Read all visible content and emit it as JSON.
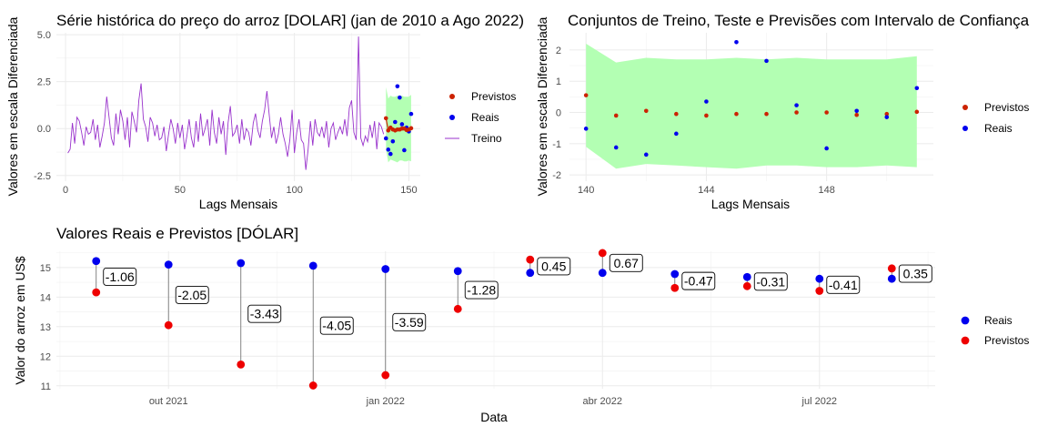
{
  "chart_data": [
    {
      "id": "p1",
      "type": "line",
      "title": "Série histórica do preço do arroz [DOLAR] (jan de 2010 a Ago 2022)",
      "xlabel": "Lags Mensais",
      "ylabel": "Valores em escala Diferenciada",
      "xlim": [
        -4,
        155
      ],
      "ylim": [
        -2.8,
        5.1
      ],
      "xticks": [
        0,
        50,
        100,
        150
      ],
      "yticks": [
        -2.5,
        0.0,
        2.5,
        5.0
      ],
      "ytick_labels": [
        "-2.5",
        "0.0",
        "2.5",
        "5.0"
      ],
      "legend_position": "right",
      "colors": {
        "Previstos": "#cc2200",
        "Reais": "#0000ee",
        "Treino": "#9933cc",
        "band": "#b3ffb3"
      },
      "series": [
        {
          "name": "Treino",
          "type": "line",
          "x": [
            1,
            2,
            3,
            4,
            5,
            6,
            7,
            8,
            9,
            10,
            11,
            12,
            13,
            14,
            15,
            16,
            17,
            18,
            19,
            20,
            21,
            22,
            23,
            24,
            25,
            26,
            27,
            28,
            29,
            30,
            31,
            32,
            33,
            34,
            35,
            36,
            37,
            38,
            39,
            40,
            41,
            42,
            43,
            44,
            45,
            46,
            47,
            48,
            49,
            50,
            51,
            52,
            53,
            54,
            55,
            56,
            57,
            58,
            59,
            60,
            61,
            62,
            63,
            64,
            65,
            66,
            67,
            68,
            69,
            70,
            71,
            72,
            73,
            74,
            75,
            76,
            77,
            78,
            79,
            80,
            81,
            82,
            83,
            84,
            85,
            86,
            87,
            88,
            89,
            90,
            91,
            92,
            93,
            94,
            95,
            96,
            97,
            98,
            99,
            100,
            101,
            102,
            103,
            104,
            105,
            106,
            107,
            108,
            109,
            110,
            111,
            112,
            113,
            114,
            115,
            116,
            117,
            118,
            119,
            120,
            121,
            122,
            123,
            124,
            125,
            126,
            127,
            128,
            129,
            130,
            131,
            132,
            133,
            134,
            135,
            136,
            137,
            138,
            139
          ],
          "y": [
            -1.3,
            -1.1,
            0.3,
            -0.8,
            0.6,
            0.4,
            -0.2,
            -0.9,
            0.1,
            -0.3,
            -0.2,
            0.5,
            -0.6,
            0.2,
            -1.0,
            -0.4,
            0.3,
            1.7,
            0.6,
            -0.5,
            -0.9,
            0.8,
            -0.3,
            1.0,
            0.4,
            -0.6,
            0.6,
            -1.0,
            0.9,
            0.4,
            -0.2,
            1.5,
            2.4,
            0.5,
            0.1,
            -0.7,
            0.6,
            0.3,
            -0.4,
            0.2,
            -0.6,
            -0.5,
            0.1,
            -1.2,
            -0.3,
            0.5,
            0.0,
            -0.8,
            0.3,
            -0.5,
            0.2,
            -1.1,
            -0.4,
            0.5,
            -0.5,
            -1.0,
            0.4,
            -0.7,
            0.8,
            -0.4,
            0.0,
            0.5,
            -0.9,
            1.0,
            -0.2,
            -0.8,
            0.6,
            -0.3,
            0.4,
            -1.4,
            0.3,
            1.2,
            -0.4,
            -0.2,
            0.2,
            -0.8,
            0.5,
            -0.6,
            0.0,
            -0.2,
            -0.9,
            0.3,
            0.8,
            -0.1,
            -0.5,
            0.4,
            1.0,
            2.0,
            0.7,
            -0.5,
            0.1,
            -0.8,
            -0.3,
            0.6,
            -0.3,
            -0.8,
            -1.5,
            -0.6,
            1.0,
            -1.3,
            -0.2,
            0.5,
            -0.6,
            -0.8,
            -2.2,
            -1.1,
            0.4,
            -0.9,
            0.5,
            -0.2,
            -0.4,
            0.1,
            -0.5,
            0.4,
            -1.0,
            0.0,
            0.3,
            -0.6,
            -0.2,
            0.1,
            -0.3,
            0.5,
            -0.4,
            1.1,
            1.5,
            -0.2,
            -0.6,
            4.9,
            -0.5,
            -0.9,
            -0.4,
            -0.7,
            0.2,
            -0.5,
            0.4,
            -1.1,
            0.3,
            0.1,
            -0.3
          ]
        },
        {
          "name": "Previstos",
          "type": "points",
          "x": [
            140,
            141,
            142,
            143,
            144,
            145,
            146,
            147,
            148,
            149,
            150,
            151
          ],
          "y": [
            0.55,
            -0.1,
            0.05,
            -0.05,
            -0.1,
            -0.05,
            -0.05,
            0.0,
            0.0,
            -0.08,
            -0.05,
            0.02
          ]
        },
        {
          "name": "Reais",
          "type": "points",
          "x": [
            140,
            141,
            142,
            143,
            144,
            145,
            146,
            147,
            148,
            149,
            150,
            151
          ],
          "y": [
            -0.52,
            -1.12,
            -1.35,
            -0.68,
            0.35,
            2.25,
            1.65,
            0.23,
            -1.15,
            0.05,
            -0.15,
            0.78
          ]
        },
        {
          "name": "band",
          "type": "area",
          "x": [
            140,
            141,
            142,
            143,
            144,
            145,
            146,
            147,
            148,
            149,
            150,
            151
          ],
          "upper": [
            2.2,
            1.6,
            1.75,
            1.7,
            1.7,
            1.75,
            1.7,
            1.75,
            1.7,
            1.7,
            1.7,
            1.8
          ],
          "lower": [
            -1.1,
            -1.8,
            -1.65,
            -1.7,
            -1.75,
            -1.8,
            -1.7,
            -1.7,
            -1.75,
            -1.75,
            -1.7,
            -1.75
          ]
        }
      ],
      "legend": [
        {
          "label": "Previstos",
          "kind": "point",
          "color": "#cc2200"
        },
        {
          "label": "Reais",
          "kind": "point",
          "color": "#0000ee"
        },
        {
          "label": "Treino",
          "kind": "line",
          "color": "#9933cc"
        }
      ]
    },
    {
      "id": "p2",
      "type": "scatter",
      "title": "Conjuntos de Treino, Teste e Previsões com Intervalo de Confiança",
      "xlabel": "Lags Mensais",
      "ylabel": "Valores em escala Diferenciada",
      "xlim": [
        139.45,
        151.55
      ],
      "ylim": [
        -2.2,
        2.55
      ],
      "xticks": [
        140,
        144,
        148
      ],
      "yticks": [
        -2,
        -1,
        0,
        1,
        2
      ],
      "ytick_labels": [
        "-2",
        "-1",
        "0",
        "1",
        "2"
      ],
      "legend_position": "right",
      "colors": {
        "Previstos": "#cc2200",
        "Reais": "#0000ee",
        "band": "#b3ffb3"
      },
      "series": [
        {
          "name": "band",
          "type": "area",
          "x": [
            140,
            141,
            142,
            143,
            144,
            145,
            146,
            147,
            148,
            149,
            150,
            151
          ],
          "upper": [
            2.2,
            1.6,
            1.75,
            1.7,
            1.7,
            1.75,
            1.7,
            1.75,
            1.7,
            1.7,
            1.7,
            1.8
          ],
          "lower": [
            -1.1,
            -1.8,
            -1.65,
            -1.7,
            -1.75,
            -1.8,
            -1.7,
            -1.7,
            -1.75,
            -1.75,
            -1.7,
            -1.75
          ]
        },
        {
          "name": "Previstos",
          "type": "points",
          "x": [
            140,
            141,
            142,
            143,
            144,
            145,
            146,
            147,
            148,
            149,
            150,
            151
          ],
          "y": [
            0.55,
            -0.1,
            0.05,
            -0.05,
            -0.1,
            -0.05,
            -0.05,
            0.0,
            0.0,
            -0.08,
            -0.05,
            0.02
          ]
        },
        {
          "name": "Reais",
          "type": "points",
          "x": [
            140,
            141,
            142,
            143,
            144,
            145,
            146,
            147,
            148,
            149,
            150,
            151
          ],
          "y": [
            -0.52,
            -1.12,
            -1.35,
            -0.68,
            0.35,
            2.25,
            1.65,
            0.23,
            -1.15,
            0.05,
            -0.15,
            0.78
          ]
        }
      ],
      "legend": [
        {
          "label": "Previstos",
          "kind": "point",
          "color": "#cc2200"
        },
        {
          "label": "Reais",
          "kind": "point",
          "color": "#0000ee"
        }
      ]
    },
    {
      "id": "p3",
      "type": "dumbbell",
      "title": "Valores Reais e Previstos [DÓLAR]",
      "xlabel": "Data",
      "ylabel": "Valor do arroz em US$",
      "x_dates": [
        "2021-09-01",
        "2021-10-01",
        "2021-11-01",
        "2021-12-01",
        "2022-01-01",
        "2022-02-01",
        "2022-03-01",
        "2022-04-01",
        "2022-05-01",
        "2022-06-01",
        "2022-07-01",
        "2022-08-01"
      ],
      "xlim_months": [
        -0.55,
        11.6
      ],
      "xticks": [
        {
          "month": 1,
          "label": "out 2021"
        },
        {
          "month": 4,
          "label": "jan 2022"
        },
        {
          "month": 7,
          "label": "abr 2022"
        },
        {
          "month": 10,
          "label": "jul 2022"
        }
      ],
      "ylim": [
        10.9,
        15.55
      ],
      "yticks": [
        11,
        12,
        13,
        14,
        15
      ],
      "ytick_labels": [
        "11",
        "12",
        "13",
        "14",
        "15"
      ],
      "legend_position": "right",
      "colors": {
        "Reais": "#0000ee",
        "Previstos": "#ee0000",
        "segment": "#777777"
      },
      "series": [
        {
          "name": "Reais",
          "values": [
            15.22,
            15.1,
            15.15,
            15.06,
            14.95,
            14.88,
            14.82,
            14.82,
            14.78,
            14.68,
            14.62,
            14.62
          ]
        },
        {
          "name": "Previstos",
          "values": [
            14.16,
            13.05,
            11.72,
            11.01,
            11.36,
            13.6,
            15.27,
            15.49,
            14.31,
            14.37,
            14.21,
            14.97
          ]
        }
      ],
      "labels": [
        "-1.06",
        "-2.05",
        "-3.43",
        "-4.05",
        "-3.59",
        "-1.28",
        "0.45",
        "0.67",
        "-0.47",
        "-0.31",
        "-0.41",
        "0.35"
      ],
      "legend": [
        {
          "label": "Reais",
          "kind": "point",
          "color": "#0000ee"
        },
        {
          "label": "Previstos",
          "kind": "point",
          "color": "#ee0000"
        }
      ]
    }
  ]
}
